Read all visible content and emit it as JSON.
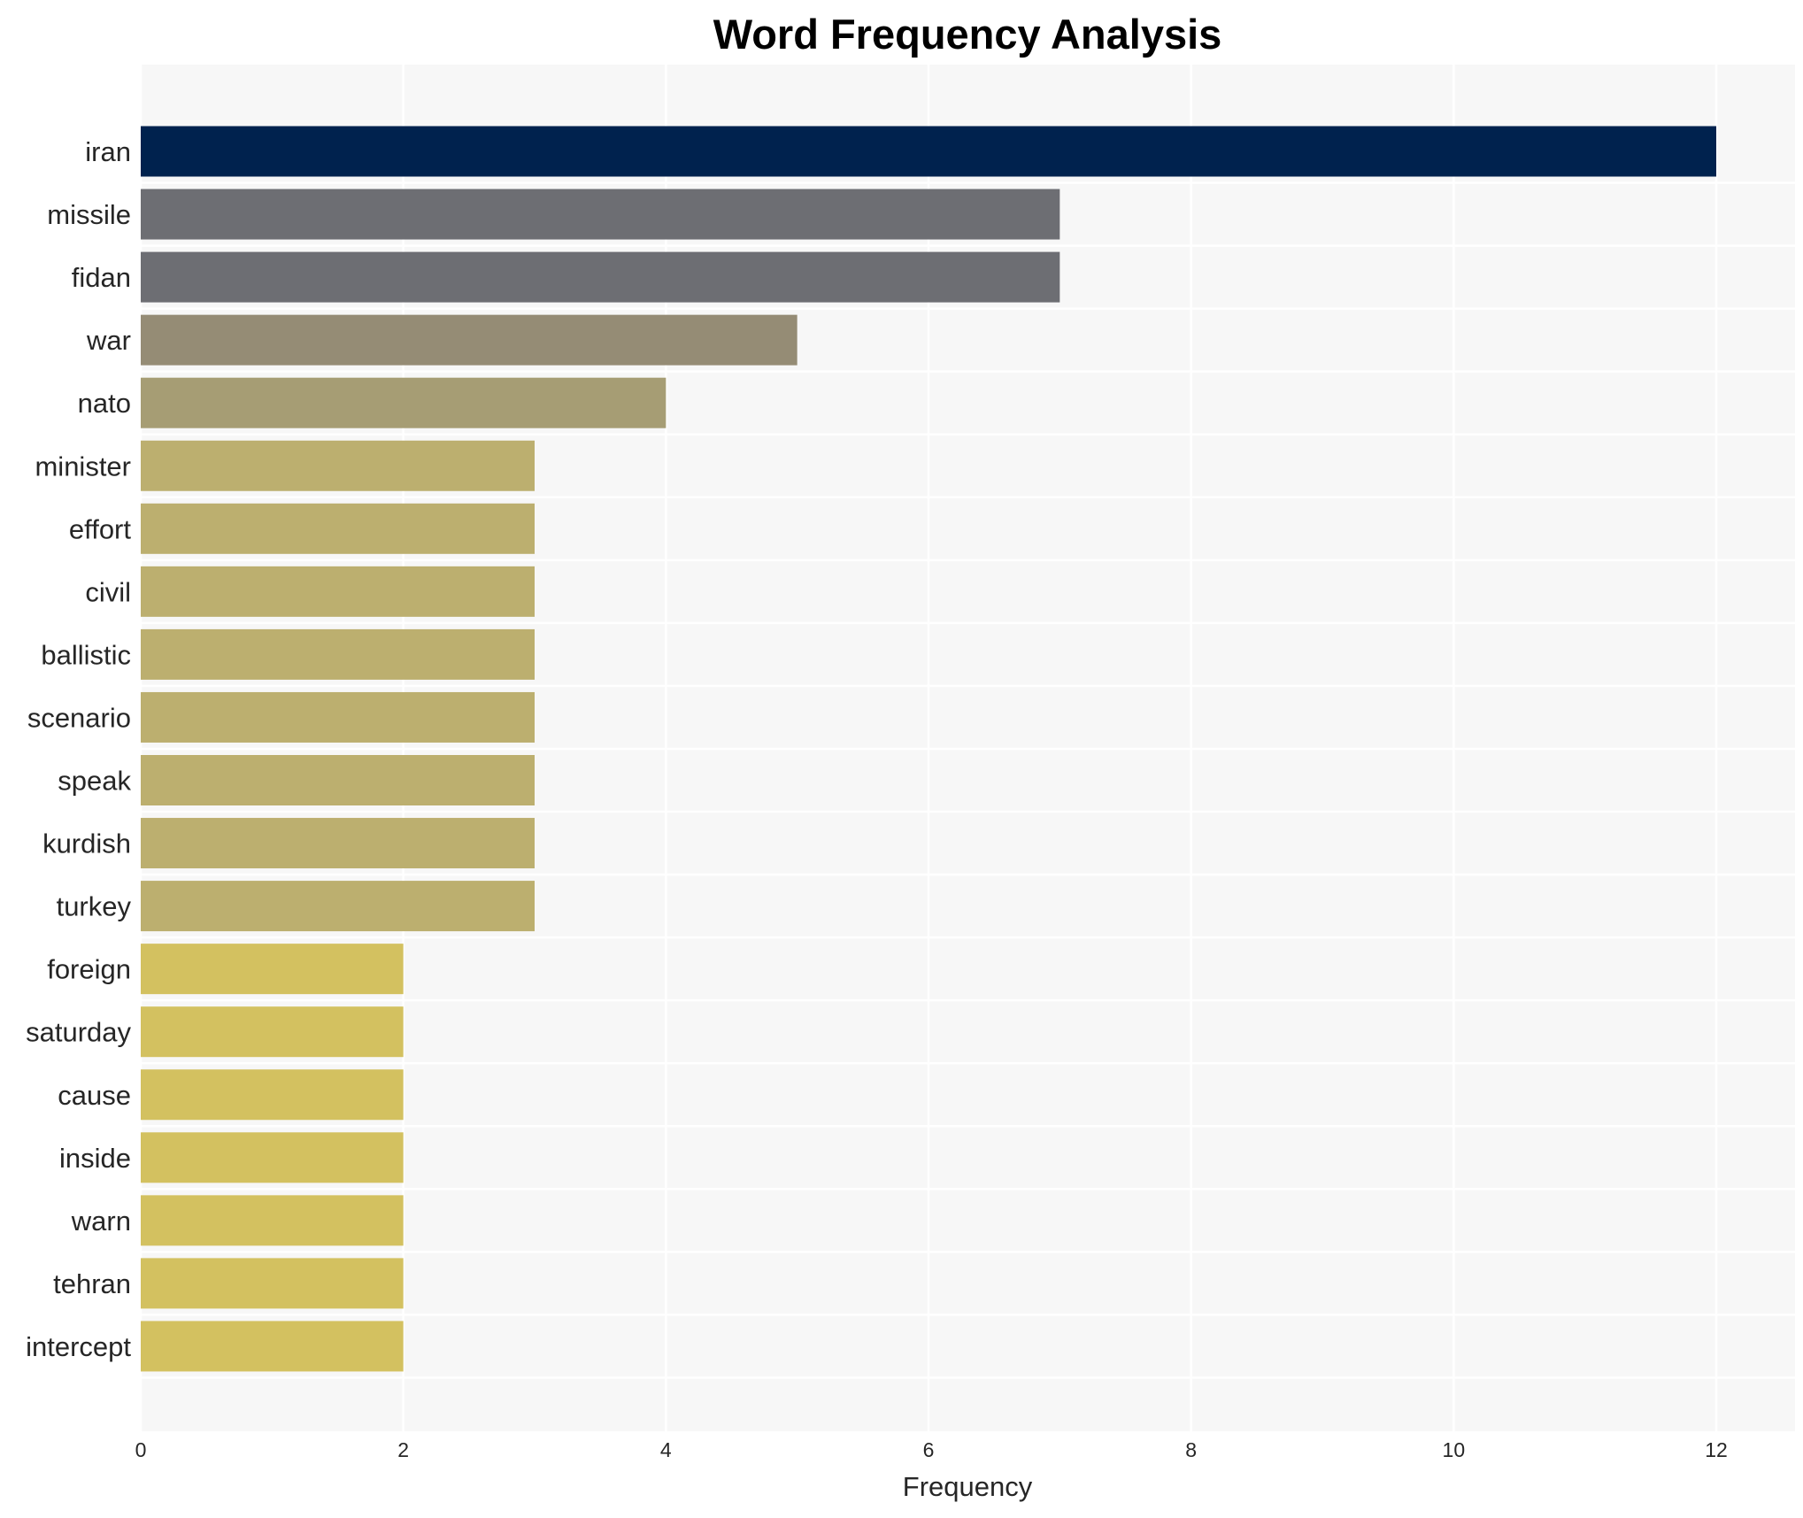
{
  "chart_data": {
    "type": "bar",
    "orientation": "horizontal",
    "title": "Word Frequency Analysis",
    "xlabel": "Frequency",
    "ylabel": "",
    "xlim": [
      0,
      12.6
    ],
    "xticks": [
      0,
      2,
      4,
      6,
      8,
      10,
      12
    ],
    "grid": true,
    "categories": [
      "iran",
      "missile",
      "fidan",
      "war",
      "nato",
      "minister",
      "effort",
      "civil",
      "ballistic",
      "scenario",
      "speak",
      "kurdish",
      "turkey",
      "foreign",
      "saturday",
      "cause",
      "inside",
      "warn",
      "tehran",
      "intercept"
    ],
    "values": [
      12,
      7,
      7,
      5,
      4,
      3,
      3,
      3,
      3,
      3,
      3,
      3,
      3,
      2,
      2,
      2,
      2,
      2,
      2,
      2
    ],
    "colors": [
      "#00224e",
      "#6d6e73",
      "#6d6e73",
      "#958c75",
      "#a69d74",
      "#bcaf6f",
      "#bcaf6f",
      "#bcaf6f",
      "#bcaf6f",
      "#bcaf6f",
      "#bcaf6f",
      "#bcaf6f",
      "#bcaf6f",
      "#d3c160",
      "#d3c160",
      "#d3c160",
      "#d3c160",
      "#d3c160",
      "#d3c160",
      "#d3c160"
    ],
    "background": "#f7f7f7"
  }
}
